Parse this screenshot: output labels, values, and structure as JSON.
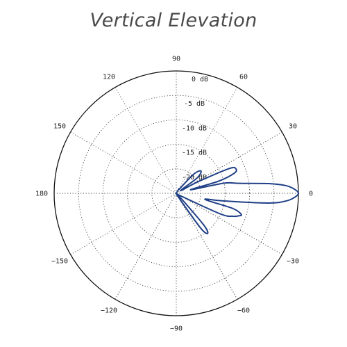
{
  "chart_data": {
    "type": "polar",
    "title": "Vertical Elevation",
    "radial_unit": "dB",
    "radial_range": [
      -25,
      0
    ],
    "radial_ticks": [
      {
        "value": 0,
        "label": "0 dB"
      },
      {
        "value": -5,
        "label": "-5 dB"
      },
      {
        "value": -10,
        "label": "-10 dB"
      },
      {
        "value": -15,
        "label": "-15 dB"
      },
      {
        "value": -20,
        "label": "-20 dB"
      }
    ],
    "angle_ticks": [
      {
        "deg": 0,
        "label": "0"
      },
      {
        "deg": 30,
        "label": "30"
      },
      {
        "deg": 60,
        "label": "60"
      },
      {
        "deg": 90,
        "label": "90"
      },
      {
        "deg": 120,
        "label": "120"
      },
      {
        "deg": 150,
        "label": "150"
      },
      {
        "deg": 180,
        "label": "180"
      },
      {
        "deg": -150,
        "label": "−150"
      },
      {
        "deg": -120,
        "label": "−120"
      },
      {
        "deg": -90,
        "label": "−90"
      },
      {
        "deg": -60,
        "label": "−60"
      },
      {
        "deg": -30,
        "label": "−30"
      }
    ],
    "grid": true,
    "series": [
      {
        "color": "#1f3f86",
        "points": [
          [
            -90,
            -25
          ],
          [
            -70,
            -25
          ],
          [
            -60,
            -24
          ],
          [
            -55,
            -16.5
          ],
          [
            -52,
            -14.6
          ],
          [
            -49,
            -16.5
          ],
          [
            -45,
            -24
          ],
          [
            -40,
            -25
          ],
          [
            -30,
            -24
          ],
          [
            -25,
            -15
          ],
          [
            -22,
            -12.5
          ],
          [
            -20,
            -11.5
          ],
          [
            -18,
            -11
          ],
          [
            -15,
            -13
          ],
          [
            -12,
            -19
          ],
          [
            -9,
            -15
          ],
          [
            -6,
            -6
          ],
          [
            -4,
            -2.5
          ],
          [
            -2,
            -0.8
          ],
          [
            0,
            0
          ],
          [
            2,
            -0.8
          ],
          [
            4,
            -2.5
          ],
          [
            6,
            -6
          ],
          [
            9,
            -12
          ],
          [
            12,
            -15
          ],
          [
            14,
            -22
          ],
          [
            16,
            -16
          ],
          [
            19,
            -12.5
          ],
          [
            22,
            -11.8
          ],
          [
            25,
            -13
          ],
          [
            28,
            -20
          ],
          [
            32,
            -24
          ],
          [
            36,
            -20
          ],
          [
            40,
            -18.4
          ],
          [
            44,
            -18.4
          ],
          [
            48,
            -20
          ],
          [
            55,
            -24
          ],
          [
            60,
            -24
          ],
          [
            70,
            -25
          ],
          [
            90,
            -25
          ]
        ]
      }
    ]
  }
}
